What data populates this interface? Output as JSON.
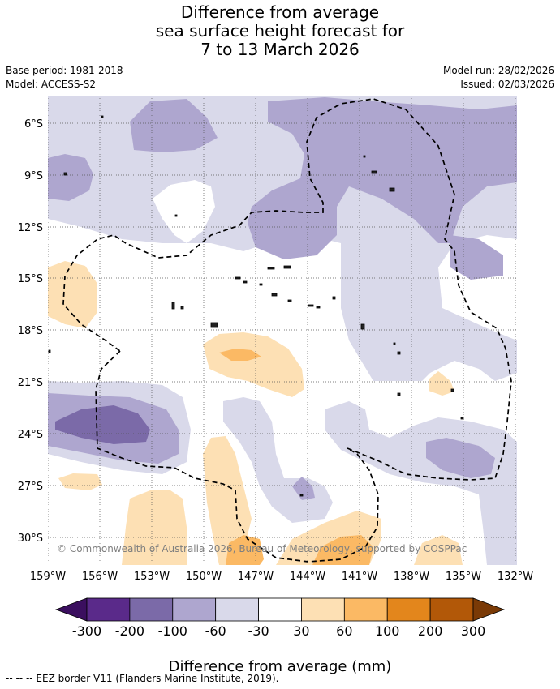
{
  "title": {
    "line1": "Difference from average",
    "line2": "sea surface height forecast for",
    "line3": "7 to 13 March 2026"
  },
  "meta": {
    "base_period": "Base period: 1981-2018",
    "model": "Model: ACCESS-S2",
    "model_run": "Model run: 28/02/2026",
    "issued": "Issued: 02/03/2026"
  },
  "map": {
    "lat_labels": [
      "6°S",
      "9°S",
      "12°S",
      "15°S",
      "18°S",
      "21°S",
      "24°S",
      "27°S",
      "30°S"
    ],
    "lon_labels": [
      "159°W",
      "156°W",
      "153°W",
      "150°W",
      "147°W",
      "144°W",
      "141°W",
      "138°W",
      "135°W",
      "132°W"
    ],
    "copyright": "© Commonwealth of Australia 2026, Bureau of Meteorology, supported by COSPPac"
  },
  "colorbar": {
    "ticks": [
      "-300",
      "-200",
      "-100",
      "-60",
      "-30",
      "30",
      "60",
      "100",
      "200",
      "300"
    ],
    "colors": [
      "#3b0f5f",
      "#5a2a8a",
      "#7b6aa8",
      "#aea6cf",
      "#d9d9ea",
      "#ffffff",
      "#fde0b4",
      "#fbb964",
      "#e3861c",
      "#b25808",
      "#7a3a06"
    ],
    "label": "Difference from average (mm)"
  },
  "footnote": "--  --  -- EEZ border V11 (Flanders Marine Institute, 2019)."
}
